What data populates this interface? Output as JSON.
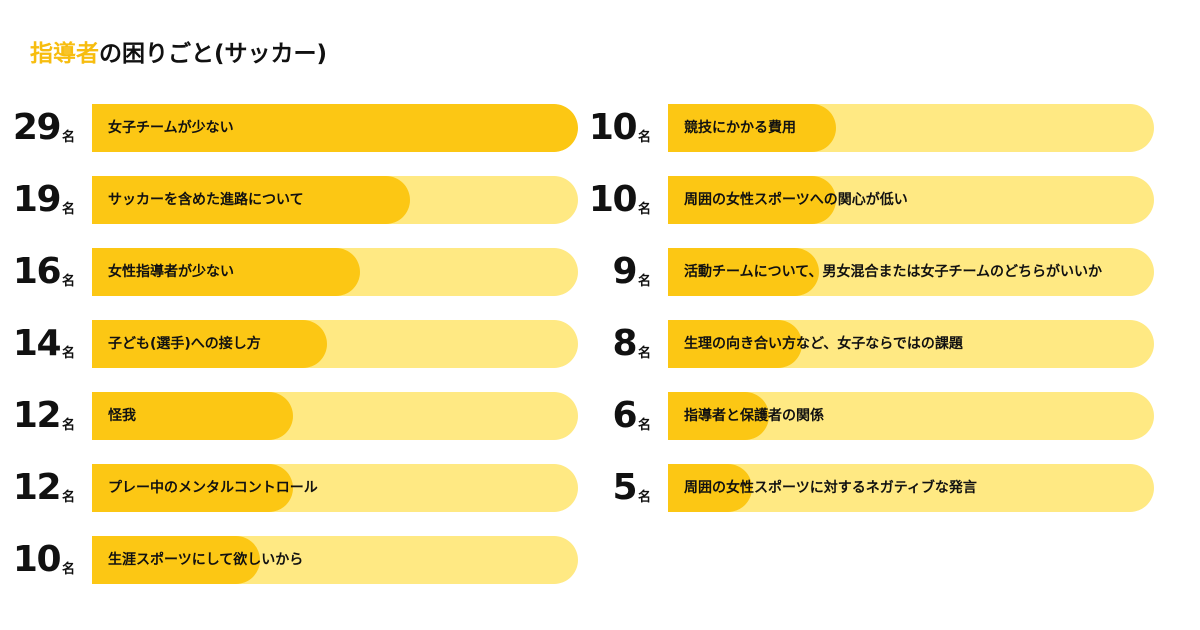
{
  "title": {
    "accent": "指導者",
    "rest": "の困りごと(サッカー)"
  },
  "chart_data": {
    "type": "bar",
    "title": "指導者の困りごと(サッカー)",
    "unit": "名",
    "max": 29,
    "colors": {
      "fill": "#fcc714",
      "track": "#ffe983",
      "accent": "#f7bd0f"
    },
    "columns": [
      [
        {
          "label": "女子チームが少ない",
          "value": 29
        },
        {
          "label": "サッカーを含めた進路について",
          "value": 19
        },
        {
          "label": "女性指導者が少ない",
          "value": 16
        },
        {
          "label": "子ども(選手)への接し方",
          "value": 14
        },
        {
          "label": "怪我",
          "value": 12
        },
        {
          "label": "プレー中のメンタルコントロール",
          "value": 12
        },
        {
          "label": "生涯スポーツにして欲しいから",
          "value": 10
        }
      ],
      [
        {
          "label": "競技にかかる費用",
          "value": 10
        },
        {
          "label": "周囲の女性スポーツへの関心が低い",
          "value": 10
        },
        {
          "label": "活動チームについて、男女混合または女子チームのどちらがいいか",
          "value": 9
        },
        {
          "label": "生理の向き合い方など、女子ならではの課題",
          "value": 8
        },
        {
          "label": "指導者と保護者の関係",
          "value": 6
        },
        {
          "label": "周囲の女性スポーツに対するネガティブな発言",
          "value": 5
        }
      ]
    ]
  }
}
